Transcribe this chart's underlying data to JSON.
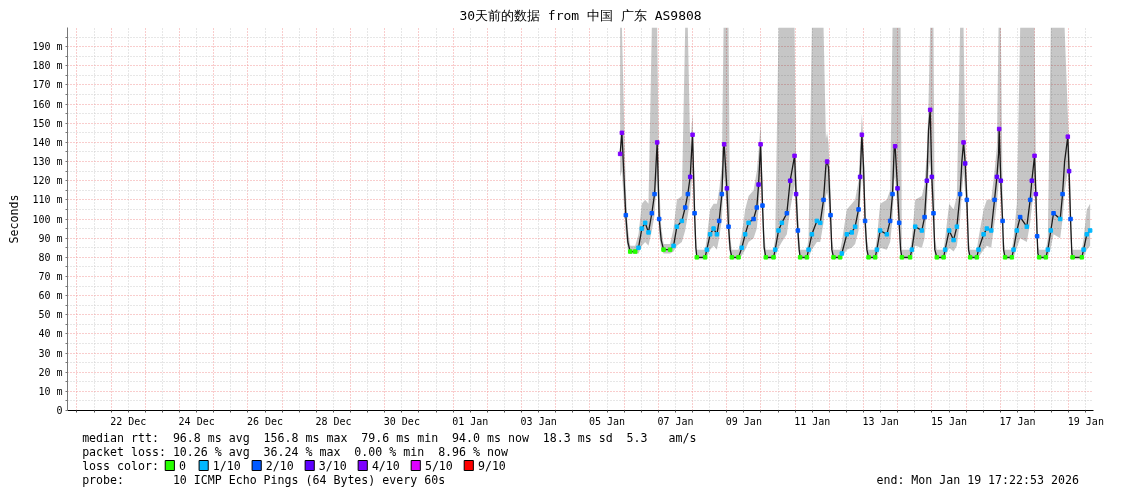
{
  "chart_data": {
    "type": "line",
    "title": "30天前的数据 from 中国 广东 AS9808",
    "ylabel": "Seconds",
    "legend_title": "loss color:",
    "annotations": [
      "median rtt:  96.8 ms avg  156.8 ms max  79.6 ms min  94.0 ms now  18.3 ms sd  5.3   am/s",
      "packet loss: 10.26 % avg  36.24 % max  0.00 % min  8.96 % now",
      "probe:       10 ICMP Echo Pings (64 Bytes) every 60s",
      "end: Mon Jan 19 17:22:53 2026"
    ],
    "xlim": [
      "2025-12-20T17:22",
      "2026-01-19T17:22"
    ],
    "ylim": [
      0,
      200
    ],
    "xticks": [
      {
        "value": "2025-12-21",
        "label": null
      },
      {
        "value": "2025-12-21T12:00",
        "label": null
      },
      {
        "value": "2025-12-22",
        "label": null
      },
      {
        "value": "2025-12-22T12:00",
        "label": "22 Dec"
      },
      {
        "value": "2025-12-23",
        "label": null
      },
      {
        "value": "2025-12-23T12:00",
        "label": null
      },
      {
        "value": "2025-12-24",
        "label": null
      },
      {
        "value": "2025-12-24T12:00",
        "label": "24 Dec"
      },
      {
        "value": "2025-12-25",
        "label": null
      },
      {
        "value": "2025-12-25T12:00",
        "label": null
      },
      {
        "value": "2025-12-26",
        "label": null
      },
      {
        "value": "2025-12-26T12:00",
        "label": "26 Dec"
      },
      {
        "value": "2025-12-27",
        "label": null
      },
      {
        "value": "2025-12-27T12:00",
        "label": null
      },
      {
        "value": "2025-12-28",
        "label": null
      },
      {
        "value": "2025-12-28T12:00",
        "label": "28 Dec"
      },
      {
        "value": "2025-12-29",
        "label": null
      },
      {
        "value": "2025-12-29T12:00",
        "label": null
      },
      {
        "value": "2025-12-30",
        "label": null
      },
      {
        "value": "2025-12-30T12:00",
        "label": "30 Dec"
      },
      {
        "value": "2025-12-31",
        "label": null
      },
      {
        "value": "2025-12-31T12:00",
        "label": null
      },
      {
        "value": "2026-01-01",
        "label": null
      },
      {
        "value": "2026-01-01T12:00",
        "label": "01 Jan"
      },
      {
        "value": "2026-01-02",
        "label": null
      },
      {
        "value": "2026-01-02T12:00",
        "label": null
      },
      {
        "value": "2026-01-03",
        "label": null
      },
      {
        "value": "2026-01-03T12:00",
        "label": "03 Jan"
      },
      {
        "value": "2026-01-04",
        "label": null
      },
      {
        "value": "2026-01-04T12:00",
        "label": null
      },
      {
        "value": "2026-01-05",
        "label": null
      },
      {
        "value": "2026-01-05T12:00",
        "label": "05 Jan"
      },
      {
        "value": "2026-01-06",
        "label": null
      },
      {
        "value": "2026-01-06T12:00",
        "label": null
      },
      {
        "value": "2026-01-07",
        "label": null
      },
      {
        "value": "2026-01-07T12:00",
        "label": "07 Jan"
      },
      {
        "value": "2026-01-08",
        "label": null
      },
      {
        "value": "2026-01-08T12:00",
        "label": null
      },
      {
        "value": "2026-01-09",
        "label": null
      },
      {
        "value": "2026-01-09T12:00",
        "label": "09 Jan"
      },
      {
        "value": "2026-01-10",
        "label": null
      },
      {
        "value": "2026-01-10T12:00",
        "label": null
      },
      {
        "value": "2026-01-11",
        "label": null
      },
      {
        "value": "2026-01-11T12:00",
        "label": "11 Jan"
      },
      {
        "value": "2026-01-12",
        "label": null
      },
      {
        "value": "2026-01-12T12:00",
        "label": null
      },
      {
        "value": "2026-01-13",
        "label": null
      },
      {
        "value": "2026-01-13T12:00",
        "label": "13 Jan"
      },
      {
        "value": "2026-01-14",
        "label": null
      },
      {
        "value": "2026-01-14T12:00",
        "label": null
      },
      {
        "value": "2026-01-15",
        "label": null
      },
      {
        "value": "2026-01-15T12:00",
        "label": "15 Jan"
      },
      {
        "value": "2026-01-16",
        "label": null
      },
      {
        "value": "2026-01-16T12:00",
        "label": null
      },
      {
        "value": "2026-01-17",
        "label": null
      },
      {
        "value": "2026-01-17T12:00",
        "label": "17 Jan"
      },
      {
        "value": "2026-01-18",
        "label": null
      },
      {
        "value": "2026-01-18T12:00",
        "label": null
      },
      {
        "value": "2026-01-19",
        "label": null
      },
      {
        "value": "2026-01-19T12:00",
        "label": "19 Jan"
      }
    ],
    "yticks": [
      0,
      {
        "value": 5,
        "label": null
      },
      {
        "value": 10,
        "label": "10 m"
      },
      {
        "value": 15,
        "label": null
      },
      {
        "value": 20,
        "label": "20 m"
      },
      {
        "value": 25,
        "label": null
      },
      {
        "value": 30,
        "label": "30 m"
      },
      {
        "value": 35,
        "label": null
      },
      {
        "value": 40,
        "label": "40 m"
      },
      {
        "value": 45,
        "label": null
      },
      {
        "value": 50,
        "label": "50 m"
      },
      {
        "value": 55,
        "label": null
      },
      {
        "value": 60,
        "label": "60 m"
      },
      {
        "value": 65,
        "label": null
      },
      {
        "value": 70,
        "label": "70 m"
      },
      {
        "value": 75,
        "label": null
      },
      {
        "value": 80,
        "label": "80 m"
      },
      {
        "value": 85,
        "label": null
      },
      {
        "value": 90,
        "label": "90 m"
      },
      {
        "value": 95,
        "label": null
      },
      {
        "value": 100,
        "label": "100 m"
      },
      {
        "value": 105,
        "label": null
      },
      {
        "value": 110,
        "label": "110 m"
      },
      {
        "value": 115,
        "label": null
      },
      {
        "value": 120,
        "label": "120 m"
      },
      {
        "value": 125,
        "label": null
      },
      {
        "value": 130,
        "label": "130 m"
      },
      {
        "value": 135,
        "label": null
      },
      {
        "value": 140,
        "label": "140 m"
      },
      {
        "value": 145,
        "label": null
      },
      {
        "value": 150,
        "label": "150 m"
      },
      {
        "value": 155,
        "label": null
      },
      {
        "value": 160,
        "label": "160 m"
      },
      {
        "value": 165,
        "label": null
      },
      {
        "value": 170,
        "label": "170 m"
      },
      {
        "value": 175,
        "label": null
      },
      {
        "value": 180,
        "label": "180 m"
      },
      {
        "value": 185,
        "label": null
      },
      {
        "value": 190,
        "label": "190 m"
      },
      {
        "value": 195,
        "label": null
      }
    ],
    "grid": true,
    "legend": "bottom",
    "x": [
      "2026-01-05T21:10",
      "2026-01-05T22:25",
      "2026-01-06T01:10",
      "2026-01-06T02:35",
      "2026-01-06T04:15",
      "2026-01-06T07:45",
      "2026-01-06T10:05",
      "2026-01-06T12:25",
      "2026-01-06T14:45",
      "2026-01-06T17:05",
      "2026-01-06T19:25",
      "2026-01-06T21:20",
      "2026-01-06T22:25",
      "2026-01-06T23:10",
      "2026-01-07T00:35",
      "2026-01-07T02:00",
      "2026-01-07T03:40",
      "2026-01-07T08:15",
      "2026-01-07T10:40",
      "2026-01-07T13:00",
      "2026-01-07T16:30",
      "2026-01-07T18:50",
      "2026-01-07T20:40",
      "2026-01-07T22:20",
      "2026-01-08T00:00",
      "2026-01-08T01:25",
      "2026-01-08T02:20",
      "2026-01-08T03:00",
      "2026-01-08T08:50",
      "2026-01-08T10:00",
      "2026-01-08T12:20",
      "2026-01-08T14:45",
      "2026-01-08T17:05",
      "2026-01-08T18:40",
      "2026-01-08T20:35",
      "2026-01-08T21:45",
      "2026-01-08T22:10",
      "2026-01-09T00:05",
      "2026-01-09T01:15",
      "2026-01-09T02:25",
      "2026-01-09T03:35",
      "2026-01-09T08:15",
      "2026-01-09T10:35",
      "2026-01-09T12:55",
      "2026-01-09T15:20",
      "2026-01-09T18:50",
      "2026-01-09T21:05",
      "2026-01-09T22:20",
      "2026-01-09T23:45",
      "2026-01-10T01:05",
      "2026-01-10T02:15",
      "2026-01-10T03:25",
      "2026-01-10T08:50",
      "2026-01-10T10:00",
      "2026-01-10T12:20",
      "2026-01-10T14:40",
      "2026-01-10T18:10",
      "2026-01-10T20:30",
      "2026-01-10T22:10",
      "2026-01-10T23:35",
      "2026-01-11T00:40",
      "2026-01-11T01:55",
      "2026-01-11T02:50",
      "2026-01-11T03:30",
      "2026-01-11T08:15",
      "2026-01-11T09:25",
      "2026-01-11T11:45",
      "2026-01-11T15:15",
      "2026-01-11T17:35",
      "2026-01-11T19:55",
      "2026-01-11T21:35",
      "2026-01-11T22:25",
      "2026-01-11T23:25",
      "2026-01-12T00:50",
      "2026-01-12T01:45",
      "2026-01-12T02:55",
      "2026-01-12T07:35",
      "2026-01-12T08:45",
      "2026-01-12T12:15",
      "2026-01-12T15:45",
      "2026-01-12T18:05",
      "2026-01-12T20:30",
      "2026-01-12T21:35",
      "2026-01-12T22:50",
      "2026-01-13T00:00",
      "2026-01-13T01:05",
      "2026-01-13T02:20",
      "2026-01-13T03:30",
      "2026-01-13T08:10",
      "2026-01-13T09:20",
      "2026-01-13T11:40",
      "2026-01-13T16:20",
      "2026-01-13T18:40",
      "2026-01-13T20:20",
      "2026-01-13T21:30",
      "2026-01-13T22:10",
      "2026-01-13T23:50",
      "2026-01-14T01:00",
      "2026-01-14T02:00",
      "2026-01-14T02:55",
      "2026-01-14T08:40",
      "2026-01-14T09:55",
      "2026-01-14T12:15",
      "2026-01-14T16:55",
      "2026-01-14T18:50",
      "2026-01-14T20:25",
      "2026-01-14T21:35",
      "2026-01-14T22:45",
      "2026-01-14T23:55",
      "2026-01-15T01:05",
      "2026-01-15T02:00",
      "2026-01-15T03:25",
      "2026-01-15T08:10",
      "2026-01-15T09:15",
      "2026-01-15T12:05",
      "2026-01-15T15:10",
      "2026-01-15T17:30",
      "2026-01-15T19:45",
      "2026-01-15T21:00",
      "2026-01-15T22:10",
      "2026-01-15T23:20",
      "2026-01-16T00:30",
      "2026-01-16T01:40",
      "2026-01-16T02:50",
      "2026-01-16T07:30",
      "2026-01-16T08:40",
      "2026-01-16T12:15",
      "2026-01-16T14:30",
      "2026-01-16T17:35",
      "2026-01-16T19:55",
      "2026-01-16T21:35",
      "2026-01-16T22:45",
      "2026-01-16T23:10",
      "2026-01-17T00:20",
      "2026-01-17T01:35",
      "2026-01-17T02:15",
      "2026-01-17T03:20",
      "2026-01-17T08:05",
      "2026-01-17T09:15",
      "2026-01-17T11:35",
      "2026-01-17T13:55",
      "2026-01-17T18:35",
      "2026-01-17T20:55",
      "2026-01-17T22:05",
      "2026-01-18T00:00",
      "2026-01-18T00:55",
      "2026-01-18T01:50",
      "2026-01-18T02:20",
      "2026-01-18T03:15",
      "2026-01-18T07:55",
      "2026-01-18T09:20",
      "2026-01-18T11:25",
      "2026-01-18T13:20",
      "2026-01-18T18:00",
      "2026-01-18T19:40",
      "2026-01-18T21:05",
      "2026-01-18T23:20",
      "2026-01-19T00:15",
      "2026-01-19T01:15",
      "2026-01-19T02:10",
      "2026-01-19T02:40",
      "2026-01-19T09:10",
      "2026-01-19T10:25",
      "2026-01-19T12:40",
      "2026-01-19T15:00"
    ],
    "series": [
      {
        "color": "#1a1a1a",
        "values": [
          134,
          145,
          102,
          88,
          83,
          83,
          85,
          95,
          98,
          93,
          103,
          113,
          129,
          140,
          100,
          89,
          84,
          84,
          86,
          96,
          99,
          106,
          113,
          122,
          144,
          103,
          85,
          80,
          80,
          84,
          92,
          95,
          92,
          99,
          113,
          137,
          139,
          116,
          96,
          84,
          80,
          80,
          85,
          92,
          98,
          100,
          106,
          118,
          139,
          107,
          85,
          80,
          80,
          84,
          94,
          98,
          103,
          120,
          127,
          133,
          113,
          94,
          84,
          80,
          80,
          84,
          92,
          99,
          98,
          110,
          128,
          130,
          127,
          102,
          84,
          80,
          80,
          82,
          92,
          93,
          96,
          105,
          122,
          144,
          127,
          99,
          84,
          80,
          80,
          84,
          94,
          92,
          99,
          113,
          137,
          138,
          116,
          98,
          84,
          80,
          80,
          84,
          96,
          94,
          101,
          120,
          146,
          157,
          122,
          103,
          84,
          80,
          80,
          84,
          94,
          89,
          96,
          113,
          130,
          140,
          129,
          110,
          84,
          80,
          80,
          84,
          92,
          95,
          94,
          110,
          122,
          134,
          147,
          120,
          99,
          84,
          80,
          80,
          84,
          94,
          101,
          96,
          110,
          120,
          133,
          113,
          91,
          82,
          80,
          80,
          84,
          94,
          103,
          100,
          113,
          130,
          143,
          125,
          100,
          82,
          80,
          80,
          84,
          92,
          94
        ],
        "lower": [
          122,
          125,
          92,
          84,
          82,
          82,
          82,
          86,
          88,
          86,
          94,
          102,
          115,
          122,
          92,
          84,
          82,
          82,
          83,
          86,
          88,
          94,
          102,
          110,
          125,
          92,
          82,
          79,
          79,
          80,
          84,
          86,
          84,
          90,
          100,
          120,
          122,
          104,
          88,
          81,
          79,
          79,
          81,
          84,
          88,
          90,
          95,
          105,
          122,
          96,
          81,
          79,
          79,
          80,
          85,
          88,
          92,
          105,
          112,
          118,
          100,
          86,
          81,
          79,
          79,
          80,
          84,
          88,
          88,
          98,
          112,
          114,
          110,
          92,
          81,
          79,
          79,
          80,
          84,
          85,
          87,
          94,
          108,
          125,
          112,
          90,
          81,
          79,
          79,
          80,
          85,
          84,
          88,
          100,
          120,
          122,
          104,
          90,
          81,
          79,
          79,
          80,
          86,
          85,
          90,
          105,
          125,
          130,
          108,
          92,
          81,
          79,
          79,
          80,
          85,
          83,
          86,
          100,
          114,
          124,
          114,
          98,
          81,
          79,
          79,
          80,
          84,
          86,
          85,
          98,
          108,
          118,
          128,
          106,
          90,
          81,
          79,
          79,
          80,
          85,
          90,
          88,
          98,
          106,
          118,
          100,
          85,
          80,
          79,
          79,
          80,
          85,
          92,
          90,
          100,
          114,
          125,
          110,
          90,
          80,
          79,
          79,
          80,
          84,
          86
        ],
        "upper": [
          200,
          200,
          115,
          95,
          86,
          86,
          92,
          108,
          110,
          108,
          200,
          200,
          200,
          200,
          118,
          96,
          87,
          87,
          95,
          110,
          112,
          200,
          200,
          138,
          155,
          118,
          92,
          84,
          84,
          90,
          105,
          108,
          108,
          115,
          128,
          200,
          200,
          200,
          200,
          90,
          84,
          84,
          92,
          105,
          112,
          115,
          125,
          135,
          150,
          120,
          92,
          84,
          84,
          90,
          200,
          200,
          200,
          200,
          200,
          200,
          128,
          105,
          90,
          84,
          84,
          90,
          200,
          200,
          200,
          200,
          142,
          145,
          140,
          115,
          90,
          84,
          84,
          88,
          105,
          108,
          110,
          120,
          138,
          155,
          140,
          112,
          90,
          84,
          84,
          90,
          108,
          110,
          115,
          200,
          200,
          200,
          200,
          200,
          200,
          84,
          84,
          90,
          110,
          112,
          118,
          135,
          160,
          200,
          200,
          200,
          90,
          84,
          84,
          90,
          108,
          105,
          112,
          200,
          200,
          200,
          142,
          122,
          90,
          84,
          84,
          90,
          105,
          110,
          110,
          125,
          138,
          200,
          200,
          200,
          112,
          90,
          84,
          84,
          90,
          108,
          200,
          200,
          200,
          200,
          200,
          128,
          102,
          86,
          84,
          84,
          90,
          200,
          200,
          200,
          200,
          200,
          155,
          140,
          112,
          86,
          84,
          84,
          90,
          105,
          108
        ]
      },
      {
        "name": "0",
        "type": "scatter",
        "marker": "square",
        "color": "#26ff00",
        "x": [
          "2026-01-06T04:15",
          "2026-01-06T07:45",
          "2026-01-07T03:40",
          "2026-01-07T08:15",
          "2026-01-08T03:00",
          "2026-01-08T08:50",
          "2026-01-09T03:35",
          "2026-01-09T08:15",
          "2026-01-10T03:25",
          "2026-01-10T08:50",
          "2026-01-11T03:30",
          "2026-01-11T08:15",
          "2026-01-12T02:55",
          "2026-01-12T07:35",
          "2026-01-13T03:30",
          "2026-01-13T08:10",
          "2026-01-14T02:55",
          "2026-01-14T08:40",
          "2026-01-15T03:25",
          "2026-01-15T08:10",
          "2026-01-16T02:50",
          "2026-01-16T07:30",
          "2026-01-17T03:20",
          "2026-01-17T08:05",
          "2026-01-18T03:15",
          "2026-01-18T07:55",
          "2026-01-19T02:40",
          "2026-01-19T09:10"
        ],
        "values": [
          83,
          83,
          84,
          84,
          80,
          80,
          80,
          80,
          80,
          80,
          80,
          80,
          80,
          80,
          80,
          80,
          80,
          80,
          80,
          80,
          80,
          80,
          80,
          80,
          80,
          80,
          80,
          80
        ]
      },
      {
        "name": "1/10",
        "type": "scatter",
        "marker": "square",
        "color": "#00b8ff",
        "x": [
          "2026-01-06T10:05",
          "2026-01-06T12:25",
          "2026-01-06T14:45",
          "2026-01-06T17:05",
          "2026-01-07T10:40",
          "2026-01-07T13:00",
          "2026-01-07T16:30",
          "2026-01-08T10:00",
          "2026-01-08T12:20",
          "2026-01-08T14:45",
          "2026-01-08T17:05",
          "2026-01-09T10:35",
          "2026-01-09T12:55",
          "2026-01-09T15:20",
          "2026-01-10T10:00",
          "2026-01-10T12:20",
          "2026-01-10T14:40",
          "2026-01-11T09:25",
          "2026-01-11T11:45",
          "2026-01-11T15:15",
          "2026-01-11T17:35",
          "2026-01-12T08:45",
          "2026-01-12T12:15",
          "2026-01-12T15:45",
          "2026-01-12T18:05",
          "2026-01-13T09:20",
          "2026-01-13T11:40",
          "2026-01-13T16:20",
          "2026-01-14T09:55",
          "2026-01-14T12:15",
          "2026-01-14T16:55",
          "2026-01-15T09:15",
          "2026-01-15T12:05",
          "2026-01-15T15:10",
          "2026-01-15T17:30",
          "2026-01-16T08:40",
          "2026-01-16T12:15",
          "2026-01-16T14:30",
          "2026-01-16T17:35",
          "2026-01-17T09:15",
          "2026-01-17T11:35",
          "2026-01-17T18:35",
          "2026-01-18T09:20",
          "2026-01-18T11:25",
          "2026-01-18T18:00",
          "2026-01-19T10:25",
          "2026-01-19T12:40",
          "2026-01-19T15:00"
        ],
        "values": [
          85,
          95,
          98,
          93,
          86,
          96,
          99,
          84,
          92,
          95,
          92,
          85,
          92,
          98,
          84,
          94,
          98,
          84,
          92,
          99,
          98,
          82,
          92,
          93,
          96,
          84,
          94,
          92,
          84,
          96,
          94,
          84,
          94,
          89,
          96,
          84,
          92,
          95,
          94,
          84,
          94,
          96,
          84,
          94,
          100,
          84,
          92,
          94
        ]
      },
      {
        "name": "2/10",
        "type": "scatter",
        "marker": "square",
        "color": "#0059ff",
        "x": [
          "2026-01-06T01:10",
          "2026-01-06T19:25",
          "2026-01-06T21:20",
          "2026-01-07T00:35",
          "2026-01-07T18:50",
          "2026-01-07T20:40",
          "2026-01-08T01:25",
          "2026-01-08T18:40",
          "2026-01-08T20:35",
          "2026-01-09T01:15",
          "2026-01-09T18:50",
          "2026-01-09T21:05",
          "2026-01-10T01:05",
          "2026-01-10T18:10",
          "2026-01-11T01:55",
          "2026-01-11T19:55",
          "2026-01-12T00:50",
          "2026-01-12T20:30",
          "2026-01-13T01:05",
          "2026-01-13T18:40",
          "2026-01-13T20:20",
          "2026-01-14T01:00",
          "2026-01-14T18:50",
          "2026-01-15T01:05",
          "2026-01-15T19:45",
          "2026-01-16T00:30",
          "2026-01-16T19:55",
          "2026-01-17T01:35",
          "2026-01-17T13:55",
          "2026-01-17T20:55",
          "2026-01-18T01:50",
          "2026-01-18T13:20",
          "2026-01-18T19:40",
          "2026-01-19T01:15"
        ],
        "values": [
          102,
          103,
          113,
          100,
          106,
          113,
          103,
          99,
          113,
          96,
          100,
          106,
          107,
          103,
          94,
          110,
          102,
          105,
          99,
          99,
          113,
          98,
          101,
          103,
          113,
          110,
          110,
          99,
          101,
          110,
          91,
          103,
          113,
          100
        ]
      },
      {
        "name": "3/10",
        "type": "scatter",
        "marker": "square",
        "color": "#5e00ff",
        "x": [
          "2026-01-07T22:20",
          "2026-01-09T00:05",
          "2026-01-09T22:20",
          "2026-01-10T20:30",
          "2026-01-11T00:40",
          "2026-01-12T21:35",
          "2026-01-13T23:50",
          "2026-01-14T20:25",
          "2026-01-14T23:55",
          "2026-01-15T23:20",
          "2026-01-16T21:35",
          "2026-01-17T00:20",
          "2026-01-17T22:05",
          "2026-01-18T00:55",
          "2026-01-19T00:15"
        ],
        "values": [
          122,
          116,
          118,
          120,
          113,
          122,
          116,
          120,
          122,
          129,
          122,
          120,
          120,
          113,
          125
        ]
      },
      {
        "name": "4/10",
        "type": "scatter",
        "marker": "square",
        "color": "#7e00ff",
        "x": [
          "2026-01-05T21:10",
          "2026-01-05T22:25",
          "2026-01-06T23:10",
          "2026-01-08T00:00",
          "2026-01-08T22:10",
          "2026-01-09T23:45",
          "2026-01-10T23:35",
          "2026-01-11T22:25",
          "2026-01-12T22:50",
          "2026-01-13T22:10",
          "2026-01-14T22:45",
          "2026-01-15T22:10",
          "2026-01-16T23:10",
          "2026-01-18T00:00",
          "2026-01-18T23:20"
        ],
        "values": [
          134,
          145,
          140,
          144,
          139,
          139,
          133,
          130,
          144,
          138,
          157,
          140,
          147,
          133,
          143
        ]
      },
      {
        "name": "5/10",
        "type": "scatter",
        "marker": "square",
        "color": "#dd00ff",
        "values": [
          null,
          null,
          null,
          null,
          null,
          null,
          null,
          null,
          null,
          null,
          null,
          null,
          null,
          null,
          null,
          null,
          null,
          null,
          null,
          null,
          null,
          null,
          null,
          null,
          null,
          null,
          null,
          null,
          null,
          null,
          null,
          null,
          null,
          null,
          null,
          null,
          null,
          null,
          null,
          null,
          null,
          null,
          null,
          null,
          null,
          null,
          null,
          null,
          null,
          null,
          null,
          null,
          null,
          null,
          null,
          null,
          null,
          null,
          null,
          null,
          null,
          null,
          null,
          null,
          null,
          null,
          null,
          null,
          null,
          null,
          null,
          null,
          null,
          null,
          null,
          null,
          null,
          null,
          null,
          null,
          null,
          null,
          null,
          null,
          null,
          null,
          null,
          null,
          null,
          null,
          null,
          null,
          null,
          null,
          null,
          null,
          null,
          null,
          null,
          null,
          null,
          null,
          null,
          null,
          null,
          null,
          null,
          null,
          null,
          null,
          null,
          null,
          null,
          null,
          null,
          null,
          null,
          null,
          null,
          null,
          null,
          null,
          null,
          null,
          null,
          null,
          null,
          null,
          null,
          null,
          null,
          null,
          null,
          null,
          null,
          null,
          null,
          null,
          null,
          null,
          null,
          null,
          null,
          null,
          null,
          null,
          null,
          null,
          null,
          null,
          null,
          null,
          null,
          null,
          null,
          null,
          null,
          null,
          null,
          null,
          null,
          null,
          null,
          null,
          null
        ]
      },
      {
        "name": "9/10",
        "type": "scatter",
        "marker": "square",
        "color": "#ff0000",
        "values": [
          null,
          null,
          null,
          null,
          null,
          null,
          null,
          null,
          null,
          null,
          null,
          null,
          null,
          null,
          null,
          null,
          null,
          null,
          null,
          null,
          null,
          null,
          null,
          null,
          null,
          null,
          null,
          null,
          null,
          null,
          null,
          null,
          null,
          null,
          null,
          null,
          null,
          null,
          null,
          null,
          null,
          null,
          null,
          null,
          null,
          null,
          null,
          null,
          null,
          null,
          null,
          null,
          null,
          null,
          null,
          null,
          null,
          null,
          null,
          null,
          null,
          null,
          null,
          null,
          null,
          null,
          null,
          null,
          null,
          null,
          null,
          null,
          null,
          null,
          null,
          null,
          null,
          null,
          null,
          null,
          null,
          null,
          null,
          null,
          null,
          null,
          null,
          null,
          null,
          null,
          null,
          null,
          null,
          null,
          null,
          null,
          null,
          null,
          null,
          null,
          null,
          null,
          null,
          null,
          null,
          null,
          null,
          null,
          null,
          null,
          null,
          null,
          null,
          null,
          null,
          null,
          null,
          null,
          null,
          null,
          null,
          null,
          null,
          null,
          null,
          null,
          null,
          null,
          null,
          null,
          null,
          null,
          null,
          null,
          null,
          null,
          null,
          null,
          null,
          null,
          null,
          null,
          null,
          null,
          null,
          null,
          null,
          null,
          null,
          null,
          null,
          null,
          null,
          null,
          null,
          null,
          null,
          null,
          null,
          null,
          null,
          null,
          null,
          null,
          null
        ]
      }
    ]
  }
}
